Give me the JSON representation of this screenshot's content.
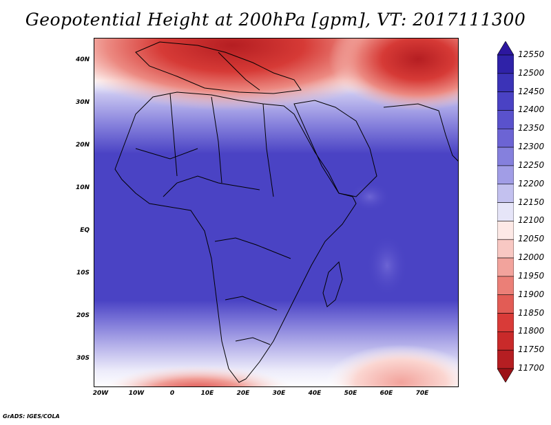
{
  "title": "Geopotential Height at 200hPa [gpm], VT: 2017111300",
  "credit": "GrADS: IGES/COLA",
  "map": {
    "variable": "Geopotential Height",
    "level": "200hPa",
    "units": "gpm",
    "valid_time": "2017111300",
    "lat_labels": [
      "40N",
      "30N",
      "20N",
      "10N",
      "EQ",
      "10S",
      "20S",
      "30S"
    ],
    "lon_labels": [
      "20W",
      "10W",
      "0",
      "10E",
      "20E",
      "30E",
      "40E",
      "50E",
      "60E",
      "70E"
    ]
  },
  "colorbar": {
    "levels": [
      "12550",
      "12500",
      "12450",
      "12400",
      "12350",
      "12300",
      "12250",
      "12200",
      "12150",
      "12100",
      "12050",
      "12000",
      "11950",
      "11900",
      "11850",
      "11800",
      "11750",
      "11700"
    ],
    "colors": [
      "#2c179f",
      "#2f22a8",
      "#3b33b7",
      "#4a42c4",
      "#5a52cc",
      "#6c64d4",
      "#8580dd",
      "#a19de6",
      "#c3c1ef",
      "#e6e5f8",
      "#fde9e6",
      "#f8c8c3",
      "#f2a39c",
      "#eb7f77",
      "#e25c55",
      "#d93b38",
      "#c92a2a",
      "#b51e22",
      "#9c1318"
    ]
  }
}
